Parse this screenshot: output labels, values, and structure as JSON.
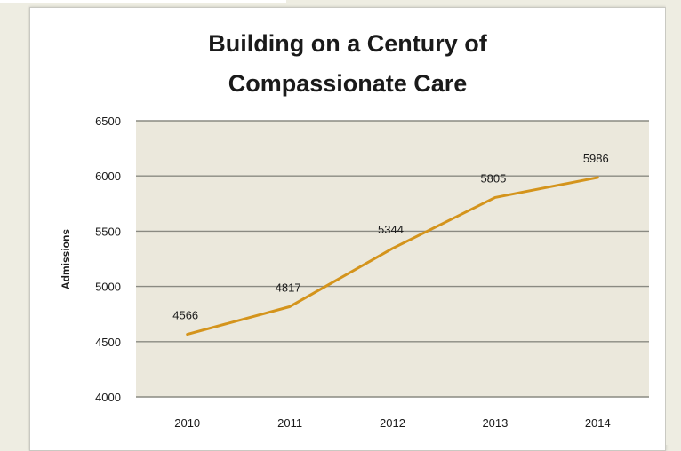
{
  "chart_data": {
    "type": "line",
    "title_lines": [
      "Building on a Century of",
      "Compassionate Care"
    ],
    "xlabel": "",
    "ylabel": "Admissions",
    "categories": [
      "2010",
      "2011",
      "2012",
      "2013",
      "2014"
    ],
    "series": [
      {
        "values": [
          4566,
          4817,
          5344,
          5805,
          5986
        ],
        "color": "#d4941c"
      }
    ],
    "data_labels": [
      "4566",
      "4817",
      "5344",
      "5805",
      "5986"
    ],
    "ylim": [
      4000,
      6500
    ],
    "y_ticks": [
      4000,
      4500,
      5000,
      5500,
      6000,
      6500
    ],
    "grid": true,
    "plot_background": "#ebe8dc",
    "gridline_color": "#8a8a82",
    "legend": "none"
  }
}
